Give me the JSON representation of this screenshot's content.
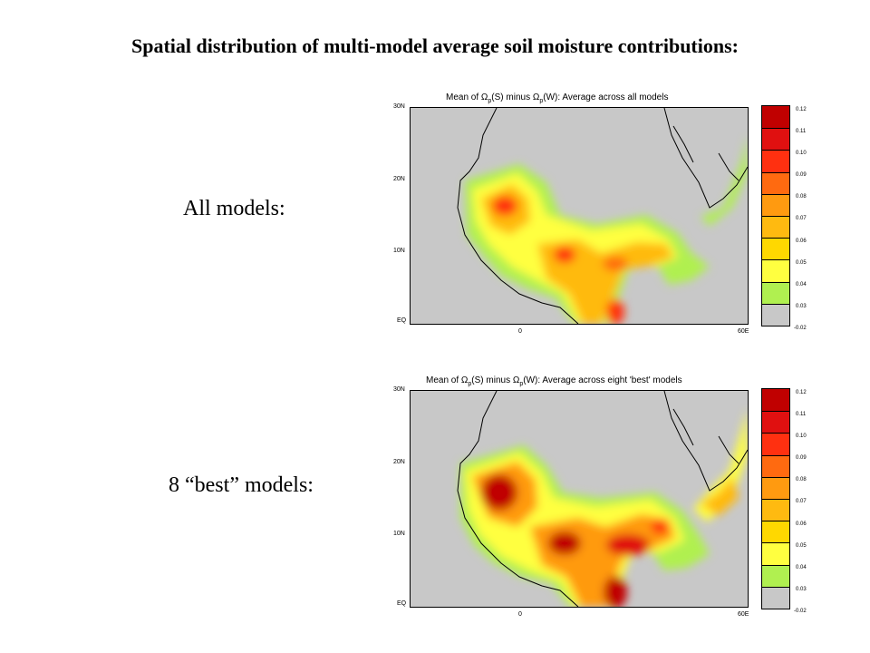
{
  "slide": {
    "title": "Spatial distribution of multi-model average soil moisture contributions:"
  },
  "panels": [
    {
      "row_label": "All models:",
      "title_prefix": "Mean of Ω",
      "title_middle": "(S) minus Ω",
      "title_suffix": "(W): Average across all models",
      "subscript": "p"
    },
    {
      "row_label": "8 “best” models:",
      "title_prefix": "Mean of Ω",
      "title_middle": "(S) minus Ω",
      "title_suffix": "(W): Average across eight 'best' models",
      "subscript": "p"
    }
  ],
  "map_axes": {
    "lat_ticks": [
      "30N",
      "20N",
      "10N",
      "EQ"
    ],
    "lon_ticks": [
      "0",
      "60E"
    ]
  },
  "colorbar": {
    "labels": [
      "0.12",
      "0.11",
      "0.10",
      "0.09",
      "0.08",
      "0.07",
      "0.06",
      "0.05",
      "0.04",
      "0.03",
      "-0.02"
    ],
    "colors": [
      "#c00000",
      "#e01010",
      "#ff3010",
      "#ff6a10",
      "#ff9a10",
      "#ffba10",
      "#ffd800",
      "#ffff40",
      "#b0f050",
      "#c8c8c8"
    ]
  }
}
